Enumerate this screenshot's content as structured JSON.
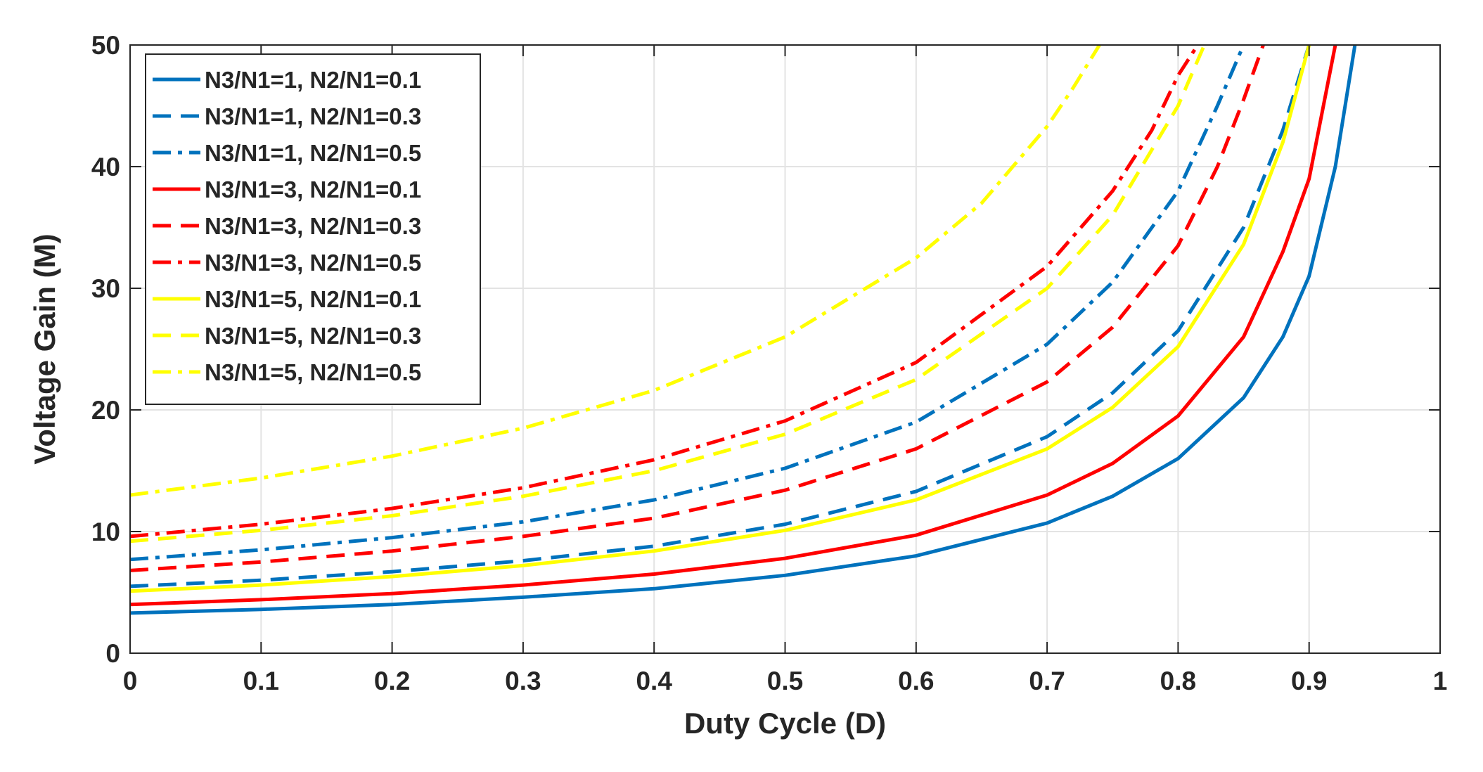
{
  "chart_data": {
    "type": "line",
    "title": "",
    "xlabel": "Duty Cycle (D)",
    "ylabel": "Voltage Gain (M)",
    "xlim": [
      0,
      1
    ],
    "ylim": [
      0,
      50
    ],
    "grid": true,
    "legend_position": "top-left",
    "x_ticks": [
      0,
      0.1,
      0.2,
      0.3,
      0.4,
      0.5,
      0.6,
      0.7,
      0.8,
      0.9,
      1
    ],
    "x_tick_labels": [
      "0",
      "0.1",
      "0.2",
      "0.3",
      "0.4",
      "0.5",
      "0.6",
      "0.7",
      "0.8",
      "0.9",
      "1"
    ],
    "y_ticks": [
      0,
      10,
      20,
      30,
      40,
      50
    ],
    "y_tick_labels": [
      "0",
      "10",
      "20",
      "30",
      "40",
      "50"
    ],
    "series": [
      {
        "name": "N3/N1=1, N2/N1=0.1",
        "color": "#0072BD",
        "dash": "solid",
        "x": [
          0,
          0.1,
          0.2,
          0.3,
          0.4,
          0.5,
          0.6,
          0.7,
          0.75,
          0.8,
          0.85,
          0.88,
          0.9,
          0.92,
          0.935
        ],
        "y": [
          3.3,
          3.6,
          4.0,
          4.6,
          5.3,
          6.4,
          8.0,
          10.7,
          12.9,
          16.0,
          21.0,
          26.0,
          31.0,
          40.0,
          50.0
        ]
      },
      {
        "name": "N3/N1=1, N2/N1=0.3",
        "color": "#0072BD",
        "dash": "dashed",
        "x": [
          0,
          0.1,
          0.2,
          0.3,
          0.4,
          0.5,
          0.6,
          0.7,
          0.75,
          0.8,
          0.85,
          0.88,
          0.9
        ],
        "y": [
          5.5,
          6.0,
          6.7,
          7.6,
          8.8,
          10.6,
          13.3,
          17.8,
          21.4,
          26.5,
          35.0,
          43.0,
          50.0
        ]
      },
      {
        "name": "N3/N1=1, N2/N1=0.5",
        "color": "#0072BD",
        "dash": "dashdot",
        "x": [
          0,
          0.1,
          0.2,
          0.3,
          0.4,
          0.5,
          0.6,
          0.7,
          0.75,
          0.8,
          0.83,
          0.85
        ],
        "y": [
          7.7,
          8.5,
          9.5,
          10.8,
          12.6,
          15.2,
          19.0,
          25.4,
          30.5,
          38.0,
          45.0,
          50.0
        ]
      },
      {
        "name": "N3/N1=3, N2/N1=0.1",
        "color": "#FF0000",
        "dash": "solid",
        "x": [
          0,
          0.1,
          0.2,
          0.3,
          0.4,
          0.5,
          0.6,
          0.7,
          0.75,
          0.8,
          0.85,
          0.88,
          0.9,
          0.92
        ],
        "y": [
          4.0,
          4.4,
          4.9,
          5.6,
          6.5,
          7.8,
          9.7,
          13.0,
          15.6,
          19.5,
          26.0,
          33.0,
          39.0,
          50.0
        ]
      },
      {
        "name": "N3/N1=3, N2/N1=0.3",
        "color": "#FF0000",
        "dash": "dashed",
        "x": [
          0,
          0.1,
          0.2,
          0.3,
          0.4,
          0.5,
          0.6,
          0.7,
          0.75,
          0.8,
          0.83,
          0.85,
          0.865
        ],
        "y": [
          6.8,
          7.5,
          8.4,
          9.6,
          11.1,
          13.4,
          16.8,
          22.3,
          26.8,
          33.5,
          40.0,
          45.5,
          50.0
        ]
      },
      {
        "name": "N3/N1=3, N2/N1=0.5",
        "color": "#FF0000",
        "dash": "dashdot",
        "x": [
          0,
          0.1,
          0.2,
          0.3,
          0.4,
          0.5,
          0.6,
          0.7,
          0.75,
          0.78,
          0.8,
          0.815
        ],
        "y": [
          9.6,
          10.6,
          11.9,
          13.6,
          15.9,
          19.1,
          23.9,
          31.8,
          38.0,
          43.0,
          47.5,
          50.0
        ]
      },
      {
        "name": "N3/N1=5, N2/N1=0.1",
        "color": "#FFFF00",
        "dash": "solid",
        "x": [
          0,
          0.1,
          0.2,
          0.3,
          0.4,
          0.5,
          0.6,
          0.7,
          0.75,
          0.8,
          0.85,
          0.88,
          0.9
        ],
        "y": [
          5.1,
          5.6,
          6.3,
          7.2,
          8.4,
          10.1,
          12.6,
          16.8,
          20.2,
          25.2,
          33.6,
          42.0,
          50.0
        ]
      },
      {
        "name": "N3/N1=5, N2/N1=0.3",
        "color": "#FFFF00",
        "dash": "dashed",
        "x": [
          0,
          0.1,
          0.2,
          0.3,
          0.4,
          0.5,
          0.6,
          0.7,
          0.75,
          0.8,
          0.82
        ],
        "y": [
          9.2,
          10.1,
          11.3,
          12.9,
          15.0,
          18.0,
          22.5,
          30.0,
          36.0,
          45.0,
          50.0
        ]
      },
      {
        "name": "N3/N1=5, N2/N1=0.5",
        "color": "#FFFF00",
        "dash": "dashdot",
        "x": [
          0,
          0.1,
          0.2,
          0.3,
          0.4,
          0.5,
          0.6,
          0.65,
          0.7,
          0.72,
          0.74
        ],
        "y": [
          13.0,
          14.4,
          16.2,
          18.5,
          21.6,
          26.0,
          32.5,
          37.0,
          43.3,
          46.5,
          50.0
        ]
      }
    ]
  }
}
